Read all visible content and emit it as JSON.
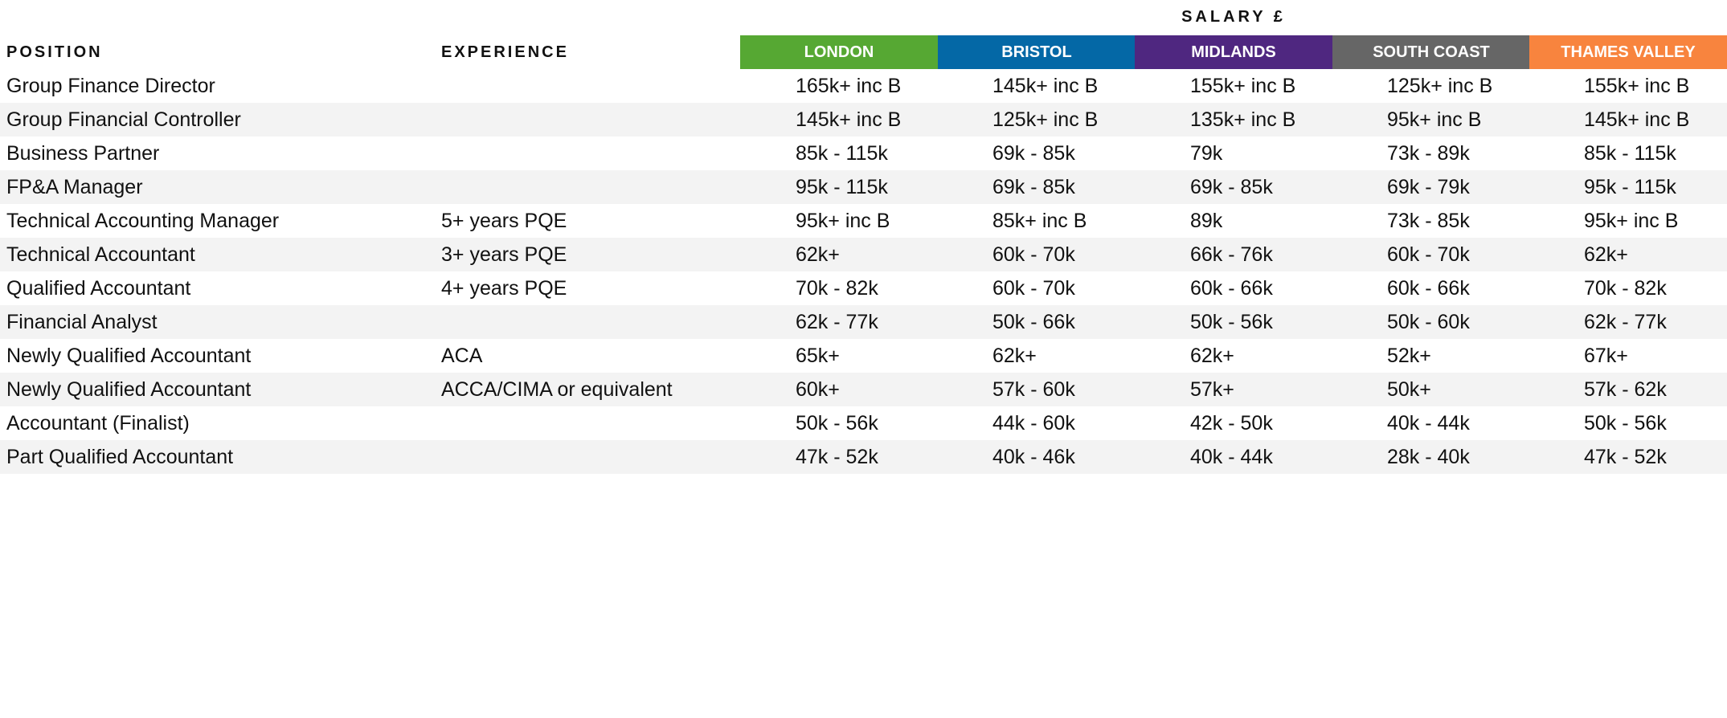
{
  "salary_heading": "SALARY £",
  "columns": {
    "position": "POSITION",
    "experience": "EXPERIENCE"
  },
  "regions": [
    {
      "label": "LONDON",
      "color": "#56a833"
    },
    {
      "label": "BRISTOL",
      "color": "#0468a6"
    },
    {
      "label": "MIDLANDS",
      "color": "#4f2780"
    },
    {
      "label": "SOUTH COAST",
      "color": "#666666"
    },
    {
      "label": "THAMES VALLEY",
      "color": "#f8843e"
    }
  ],
  "rows": [
    {
      "position": "Group Finance Director",
      "experience": "",
      "salaries": [
        "165k+ inc B",
        "145k+ inc B",
        "155k+ inc B",
        "125k+ inc B",
        "155k+ inc B"
      ]
    },
    {
      "position": "Group Financial Controller",
      "experience": "",
      "salaries": [
        "145k+ inc B",
        "125k+ inc B",
        "135k+ inc B",
        "95k+ inc B",
        "145k+ inc B"
      ]
    },
    {
      "position": "Business Partner",
      "experience": "",
      "salaries": [
        "85k - 115k",
        "69k - 85k",
        "79k",
        "73k - 89k",
        "85k - 115k"
      ]
    },
    {
      "position": "FP&A Manager",
      "experience": "",
      "salaries": [
        "95k - 115k",
        "69k - 85k",
        "69k - 85k",
        "69k - 79k",
        "95k - 115k"
      ]
    },
    {
      "position": "Technical Accounting Manager",
      "experience": "5+ years PQE",
      "salaries": [
        "95k+ inc B",
        "85k+ inc B",
        "89k",
        "73k - 85k",
        "95k+ inc B"
      ]
    },
    {
      "position": "Technical Accountant",
      "experience": "3+ years PQE",
      "salaries": [
        "62k+",
        "60k - 70k",
        "66k - 76k",
        "60k - 70k",
        "62k+"
      ]
    },
    {
      "position": "Qualified Accountant",
      "experience": "4+ years PQE",
      "salaries": [
        "70k - 82k",
        "60k - 70k",
        "60k - 66k",
        "60k - 66k",
        "70k - 82k"
      ]
    },
    {
      "position": "Financial Analyst",
      "experience": "",
      "salaries": [
        "62k - 77k",
        "50k - 66k",
        "50k - 56k",
        "50k - 60k",
        "62k - 77k"
      ]
    },
    {
      "position": "Newly Qualified Accountant",
      "experience": "ACA",
      "salaries": [
        "65k+",
        "62k+",
        "62k+",
        "52k+",
        "67k+"
      ]
    },
    {
      "position": "Newly Qualified Accountant",
      "experience": "ACCA/CIMA or equivalent",
      "salaries": [
        "60k+",
        "57k - 60k",
        "57k+",
        "50k+",
        "57k - 62k"
      ]
    },
    {
      "position": "Accountant (Finalist)",
      "experience": "",
      "salaries": [
        "50k - 56k",
        "44k - 60k",
        "42k - 50k",
        "40k - 44k",
        "50k - 56k"
      ]
    },
    {
      "position": "Part Qualified Accountant",
      "experience": "",
      "salaries": [
        "47k - 52k",
        "40k - 46k",
        "40k - 44k",
        "28k - 40k",
        "47k - 52k"
      ]
    }
  ]
}
